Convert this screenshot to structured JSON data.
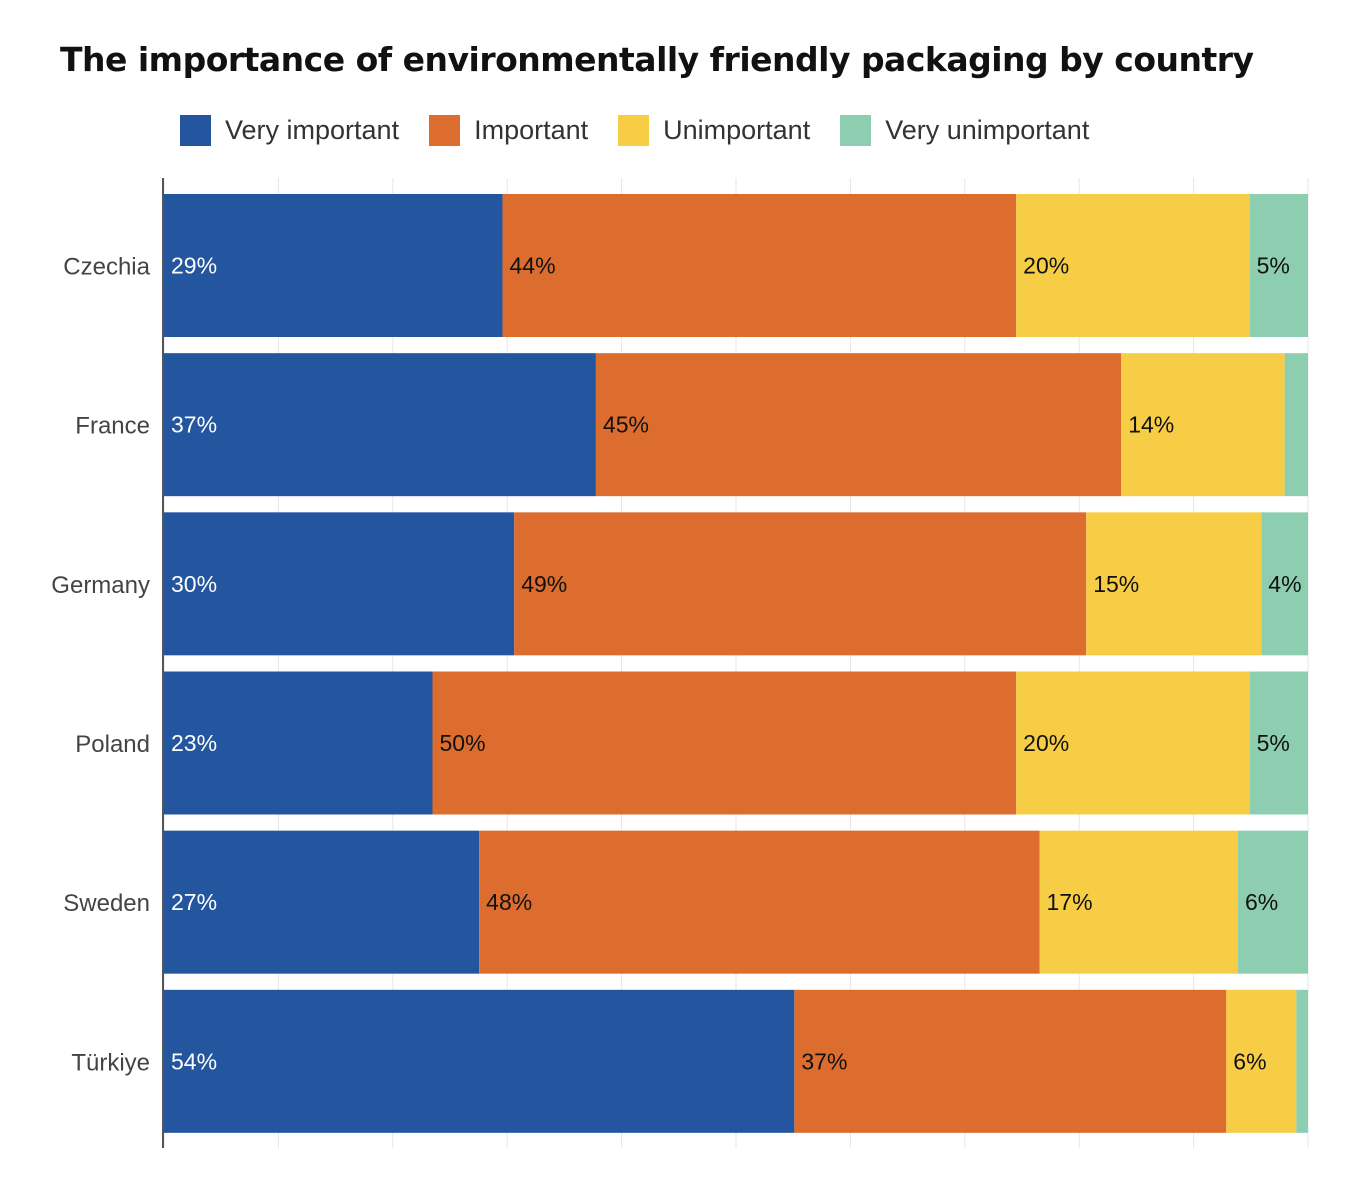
{
  "chart_data": {
    "type": "bar",
    "orientation": "horizontal",
    "stacked": true,
    "normalized": true,
    "title": "The importance of environmentally friendly packaging by country",
    "categories": [
      "Czechia",
      "France",
      "Germany",
      "Poland",
      "Sweden",
      "Türkiye"
    ],
    "series": [
      {
        "name": "Very important",
        "color": "#23569e",
        "label_color": "#ffffff",
        "values": [
          29,
          37,
          30,
          23,
          27,
          54
        ]
      },
      {
        "name": "Important",
        "color": "#dc6d2e",
        "label_color": "#111111",
        "values": [
          44,
          45,
          49,
          50,
          48,
          37
        ]
      },
      {
        "name": "Unimportant",
        "color": "#f7cd46",
        "label_color": "#111111",
        "values": [
          20,
          14,
          15,
          20,
          17,
          6
        ]
      },
      {
        "name": "Very unimportant",
        "color": "#8dcdb0",
        "label_color": "#111111",
        "values": [
          5,
          2,
          4,
          5,
          6,
          1
        ]
      }
    ],
    "xlim": [
      0,
      100
    ],
    "grid": true,
    "legend_position": "top",
    "label_min_value": 3
  }
}
